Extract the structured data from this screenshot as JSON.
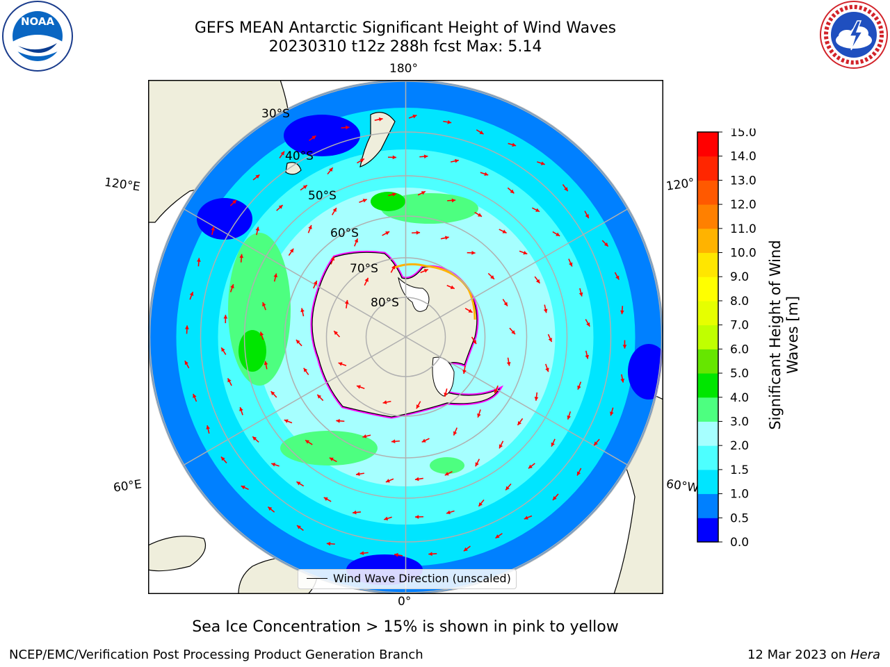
{
  "title": {
    "line1": "GEFS MEAN Antarctic Significant Height of Wind Waves",
    "line2": "20230310 t12z 288h fcst   Max: 5.14"
  },
  "logos": {
    "noaa": {
      "text": "NOAA",
      "ring": "NATIONAL OCEANIC AND ATMOSPHERIC ADMINISTRATION · U.S. DEPARTMENT OF COMMERCE"
    },
    "nws": {
      "ring": "NATIONAL WEATHER SERVICE"
    }
  },
  "map": {
    "projection": "south-polar-stereographic",
    "lon_labels": {
      "top": "180°",
      "bottom": "0°",
      "left_upper": "120°E",
      "left_lower": "60°E",
      "right_upper": "120°",
      "right_lower": "60°W"
    },
    "lat_labels": [
      "30°S",
      "40°S",
      "50°S",
      "60°S",
      "70°S",
      "80°S"
    ],
    "legend_label": "Wind Wave Direction (unscaled)",
    "arrow_color": "#ff0000",
    "land_color": "#efeedc"
  },
  "colorbar": {
    "label": "Significant Height of Wind Waves [m]",
    "ticks": [
      "0.0",
      "0.5",
      "1.0",
      "1.5",
      "2.0",
      "3.0",
      "4.0",
      "5.0",
      "6.0",
      "7.0",
      "8.0",
      "9.0",
      "10.0",
      "11.0",
      "12.0",
      "13.0",
      "14.0",
      "15.0"
    ],
    "colors": [
      "#0000ff",
      "#0080ff",
      "#00e5ff",
      "#4dffff",
      "#a6ffff",
      "#4dff80",
      "#00e600",
      "#66e600",
      "#c0ff00",
      "#e6ff00",
      "#ffff00",
      "#ffe600",
      "#ffb300",
      "#ff8000",
      "#ff5900",
      "#ff2600",
      "#ff0000"
    ]
  },
  "note": "Sea Ice Concentration > 15% is shown in pink to yellow",
  "footer": {
    "left": "NCEP/EMC/Verification Post Processing Product Generation Branch",
    "date": "12 Mar 2023 on",
    "machine": "Hera"
  }
}
